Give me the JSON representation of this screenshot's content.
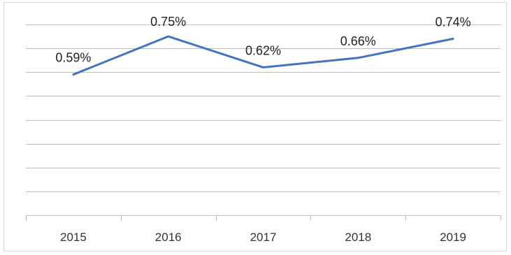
{
  "chart_data": {
    "type": "line",
    "categories": [
      "2015",
      "2016",
      "2017",
      "2018",
      "2019"
    ],
    "series": [
      {
        "values": [
          0.59,
          0.75,
          0.62,
          0.66,
          0.74
        ],
        "data_labels": [
          "0.59%",
          "0.75%",
          "0.62%",
          "0.66%",
          "0.74%"
        ]
      }
    ],
    "ylim": [
      0,
      0.8
    ],
    "grid": true,
    "colors": {
      "line": "#4472c4"
    }
  }
}
